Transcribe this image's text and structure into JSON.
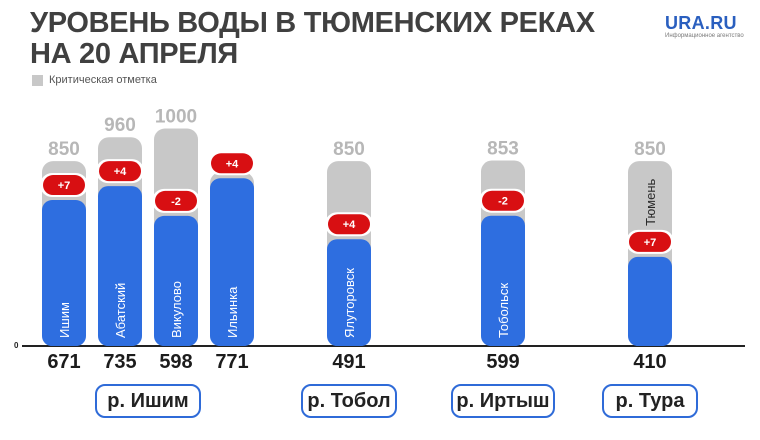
{
  "header": {
    "title_line1": "УРОВЕНЬ ВОДЫ В ТЮМЕНСКИХ РЕКАХ",
    "title_line2": "НА 20 АПРЕЛЯ",
    "logo_name": "URA.RU",
    "logo_tagline": "Информационное агентство"
  },
  "legend": {
    "critical_label": "Критическая отметка"
  },
  "colors": {
    "critical": "#c8c8c8",
    "current": "#2e6ee0",
    "badge": "#d80f12",
    "group_border": "#2f6bd8"
  },
  "chart_data": {
    "type": "bar",
    "axis_zero_label": "0",
    "ylim": [
      0,
      1000
    ],
    "grid": false,
    "legend_position": "top-left",
    "series": [
      {
        "name": "Критическая отметка",
        "values": [
          850,
          960,
          1000,
          800,
          850,
          853,
          850
        ]
      },
      {
        "values": [
          671,
          735,
          598,
          771,
          491,
          599,
          410
        ]
      }
    ],
    "bars": [
      {
        "station": "Ишим",
        "critical": 850,
        "level": 671,
        "change": "+7",
        "group": 0
      },
      {
        "station": "Абатский",
        "critical": 960,
        "level": 735,
        "change": "+4",
        "group": 0
      },
      {
        "station": "Викулово",
        "critical": 1000,
        "level": 598,
        "change": "-2",
        "group": 0
      },
      {
        "station": "Ильинка",
        "critical": 800,
        "level": 771,
        "change": "+4",
        "group": 0
      },
      {
        "station": "Ялуторовск",
        "critical": 850,
        "level": 491,
        "change": "+4",
        "group": 1
      },
      {
        "station": "Тобольск",
        "critical": 853,
        "level": 599,
        "change": "-2",
        "group": 2
      },
      {
        "station": "Тюмень",
        "critical": 850,
        "level": 410,
        "change": "+7",
        "group": 3
      }
    ],
    "groups": [
      "р. Ишим",
      "р. Тобол",
      "р. Иртыш",
      "р. Тура"
    ]
  }
}
